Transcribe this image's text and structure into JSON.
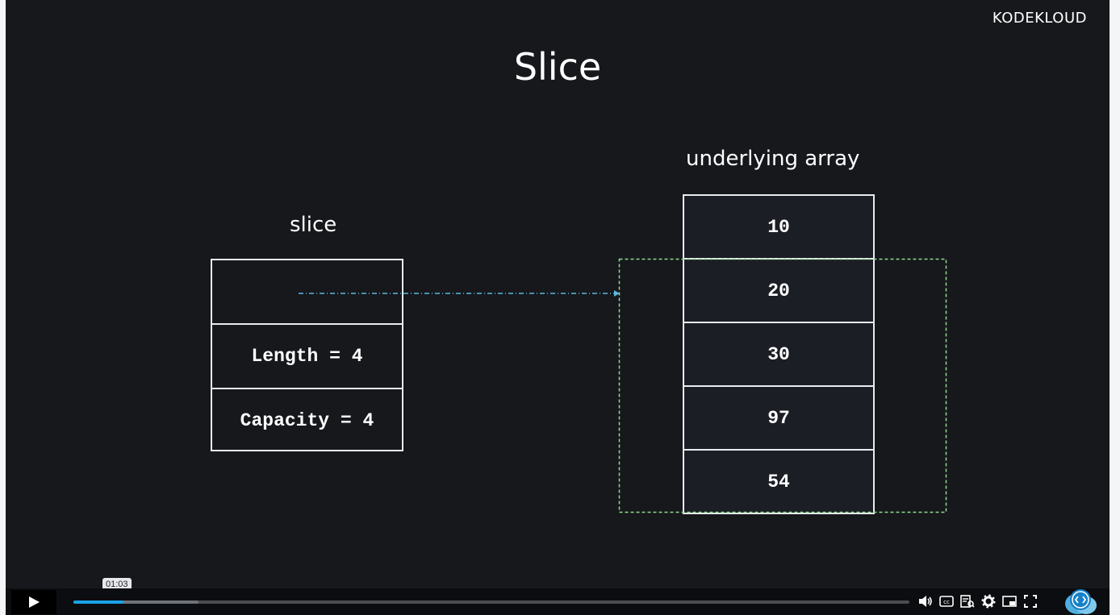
{
  "brand": {
    "logo_text": "KODEKLOUD"
  },
  "slide": {
    "title": "Slice",
    "slice_label": "slice",
    "array_label": "underlying array",
    "slice_fields": [
      "",
      "Length = 4",
      "Capacity = 4"
    ],
    "array_values": [
      "10",
      "20",
      "30",
      "97",
      "54"
    ]
  },
  "player": {
    "tooltip_time": "01:03",
    "progress_fraction": 0.06,
    "icons": [
      "volume-icon",
      "captions-icon",
      "transcript-icon",
      "settings-icon",
      "picture-in-picture-icon",
      "fullscreen-icon"
    ]
  },
  "colors": {
    "background": "#16181c",
    "accent": "#1ba3e8",
    "pointer_arrow": "#5bb7e0",
    "slice_window": "#8fdc8a"
  }
}
